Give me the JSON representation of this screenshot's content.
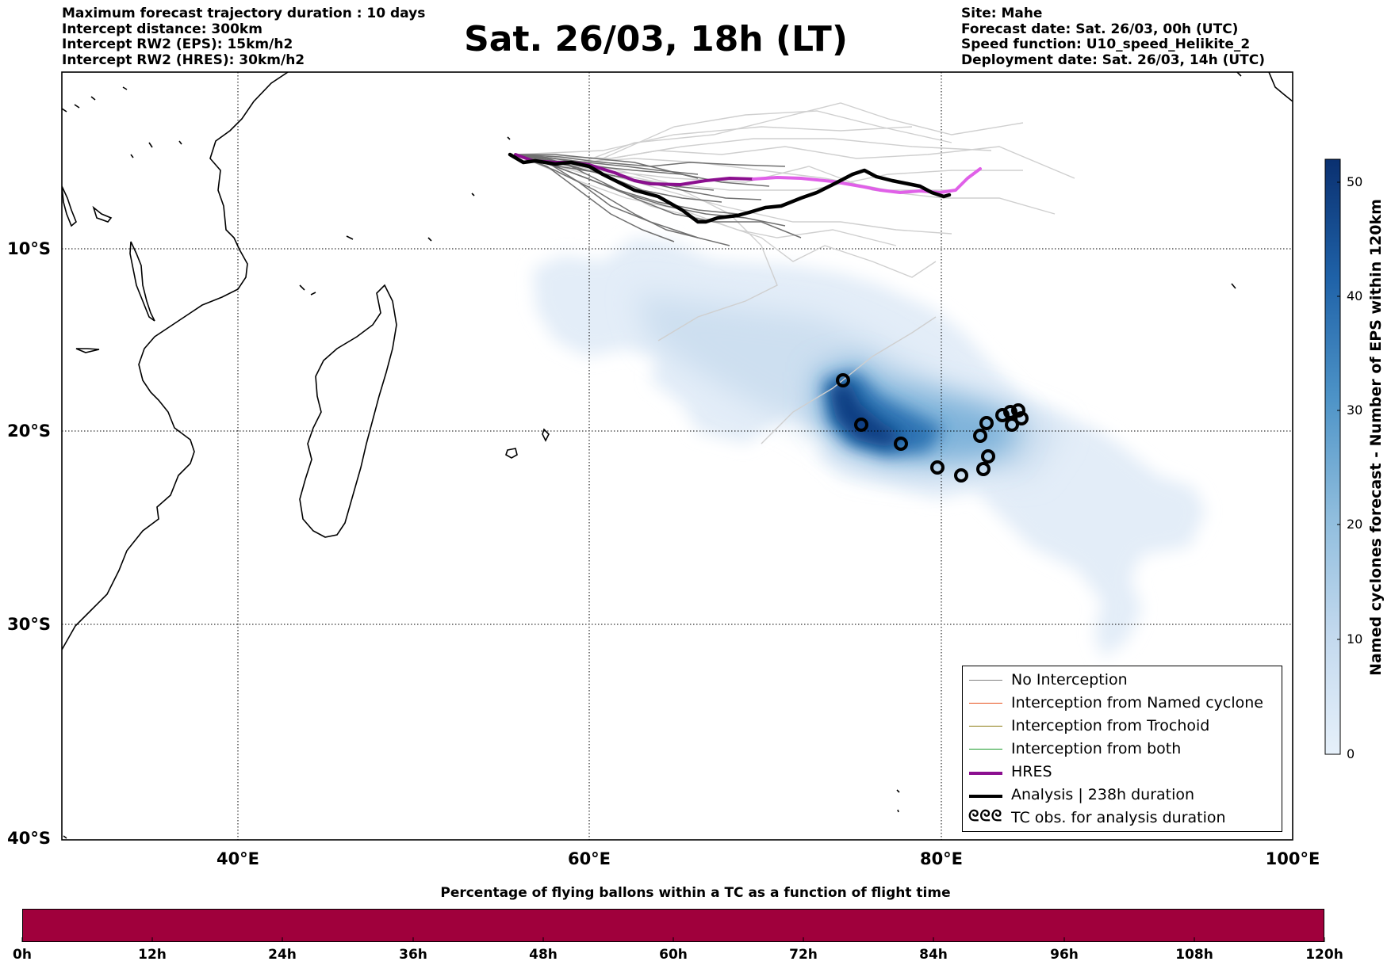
{
  "header_left": [
    "Maximum forecast trajectory duration : 10 days",
    "Intercept distance: 300km",
    "Intercept RW2 (EPS):  15km/h2",
    "Intercept RW2 (HRES): 30km/h2"
  ],
  "header_right": [
    "Site: Mahe",
    "Forecast date: Sat. 26/03, 00h (UTC)",
    "Speed function: U10_speed_Helikite_2",
    "Deployment date: Sat. 26/03, 14h (UTC)"
  ],
  "title": "Sat. 26/03, 18h (LT)",
  "lat_labels": [
    "10°S",
    "20°S",
    "30°S",
    "40°S"
  ],
  "lon_labels": [
    "40°E",
    "60°E",
    "80°E",
    "100°E"
  ],
  "colorbar": {
    "label": "Named cyclones forecast - Number of EPS within 120km",
    "ticks": [
      "0",
      "10",
      "20",
      "30",
      "40",
      "50"
    ],
    "min": 0,
    "max": 52,
    "color_low": "#e4eef9",
    "color_high": "#08306b"
  },
  "legend": {
    "items": [
      {
        "label": "No Interception",
        "color": "#808080",
        "width": 1.5
      },
      {
        "label": "Interception from Named cyclone",
        "color": "#e8501c",
        "width": 1.5
      },
      {
        "label": "Interception from Trochoid",
        "color": "#8a7a10",
        "width": 1.5
      },
      {
        "label": "Interception from both",
        "color": "#1a9a2a",
        "width": 1.5
      },
      {
        "label": "HRES",
        "color": "#8b0f8f",
        "width": 4
      },
      {
        "label": "Analysis | 238h duration",
        "color": "#000000",
        "width": 4
      }
    ],
    "tc_label": "TC obs. for analysis duration",
    "tc_symbol": "ᘓᘓᘓ"
  },
  "bottom_bar": {
    "title": "Percentage of flying ballons within a TC as a function of flight time",
    "color": "#a0003c",
    "ticks": [
      "0h",
      "12h",
      "24h",
      "36h",
      "48h",
      "60h",
      "72h",
      "84h",
      "96h",
      "108h",
      "120h"
    ]
  },
  "map_data": {
    "extent": {
      "lon": [
        30,
        100
      ],
      "lat": [
        -40,
        0
      ]
    },
    "grid_lons": [
      40,
      60,
      80
    ],
    "grid_lats": [
      -10,
      -20,
      -30
    ],
    "hres_track": [
      [
        55.5,
        -4.6
      ],
      [
        57,
        -5.1
      ],
      [
        59,
        -5.3
      ],
      [
        61,
        -5.4
      ],
      [
        63,
        -5.8
      ],
      [
        65,
        -6.2
      ],
      [
        67,
        -6.3
      ],
      [
        69,
        -6.0
      ],
      [
        71,
        -5.9
      ],
      [
        73,
        -6.1
      ],
      [
        75,
        -6.4
      ],
      [
        77,
        -6.7
      ],
      [
        79,
        -6.9
      ],
      [
        80.5,
        -6.9
      ],
      [
        82,
        -5.7
      ]
    ],
    "analysis_track": [
      [
        55.5,
        -4.6
      ],
      [
        57,
        -5.2
      ],
      [
        59,
        -5.0
      ],
      [
        61,
        -5.4
      ],
      [
        62.5,
        -6.3
      ],
      [
        64,
        -6.9
      ],
      [
        66,
        -7.6
      ],
      [
        67.5,
        -8.5
      ],
      [
        69,
        -8.1
      ],
      [
        71,
        -7.6
      ],
      [
        73,
        -7.1
      ],
      [
        75,
        -6.2
      ],
      [
        76.5,
        -5.3
      ],
      [
        78,
        -5.7
      ],
      [
        80,
        -6.4
      ],
      [
        80.4,
        -6.6
      ]
    ],
    "tc_obs": [
      [
        74.3,
        -17.1
      ],
      [
        75.4,
        -19.5
      ],
      [
        77.7,
        -20.5
      ],
      [
        80,
        -21.8
      ],
      [
        81.1,
        -22.2
      ],
      [
        82.4,
        -21.3
      ],
      [
        82.3,
        -22.0
      ],
      [
        82.1,
        -20.0
      ],
      [
        82.4,
        -19.4
      ],
      [
        83.4,
        -19.1
      ],
      [
        84.0,
        -19.5
      ],
      [
        84.5,
        -18.8
      ],
      [
        84.0,
        -18.9
      ],
      [
        84.6,
        -19.2
      ]
    ]
  }
}
